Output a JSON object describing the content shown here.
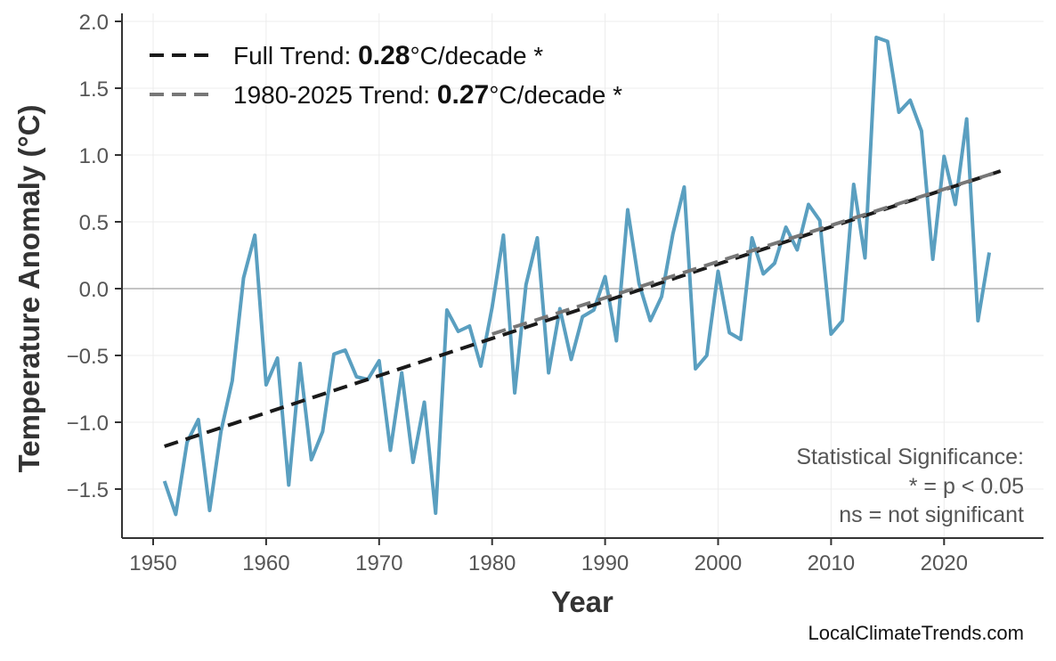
{
  "chart_data": {
    "type": "line",
    "xlabel": "Year",
    "ylabel": "Temperature Anomaly (°C)",
    "xlim": [
      1947,
      2029
    ],
    "ylim": [
      -1.85,
      2.05
    ],
    "x_ticks": [
      "1950",
      "1960",
      "1970",
      "1980",
      "1990",
      "2000",
      "2010",
      "2020"
    ],
    "y_ticks": [
      "−1.5",
      "−1.0",
      "−0.5",
      "0.0",
      "0.5",
      "1.0",
      "1.5",
      "2.0"
    ],
    "grid": true,
    "legend_position": "top-left",
    "colors": {
      "series": "#5a9fc0",
      "full_trend": "#1a1a1a",
      "recent_trend": "#777777",
      "zero_line": "#b0b0b0"
    },
    "x": [
      1951,
      1952,
      1953,
      1954,
      1955,
      1956,
      1957,
      1958,
      1959,
      1960,
      1961,
      1962,
      1963,
      1964,
      1965,
      1966,
      1967,
      1968,
      1969,
      1970,
      1971,
      1972,
      1973,
      1974,
      1975,
      1976,
      1977,
      1978,
      1979,
      1980,
      1981,
      1982,
      1983,
      1984,
      1985,
      1986,
      1987,
      1988,
      1989,
      1990,
      1991,
      1992,
      1993,
      1994,
      1995,
      1996,
      1997,
      1998,
      1999,
      2000,
      2001,
      2002,
      2003,
      2004,
      2005,
      2006,
      2007,
      2008,
      2009,
      2010,
      2011,
      2012,
      2013,
      2014,
      2015,
      2016,
      2017,
      2018,
      2019,
      2020,
      2021,
      2022,
      2023,
      2024
    ],
    "values": [
      -1.44,
      -1.69,
      -1.15,
      -0.98,
      -1.66,
      -1.07,
      -0.69,
      0.08,
      0.4,
      -0.72,
      -0.52,
      -1.47,
      -0.56,
      -1.28,
      -1.07,
      -0.49,
      -0.46,
      -0.66,
      -0.68,
      -0.54,
      -1.21,
      -0.63,
      -1.3,
      -0.85,
      -1.68,
      -0.16,
      -0.32,
      -0.28,
      -0.58,
      -0.14,
      0.4,
      -0.78,
      0.03,
      0.38,
      -0.63,
      -0.15,
      -0.53,
      -0.21,
      -0.16,
      0.09,
      -0.39,
      0.59,
      0.04,
      -0.24,
      -0.06,
      0.41,
      0.76,
      -0.6,
      -0.5,
      0.13,
      -0.33,
      -0.38,
      0.38,
      0.11,
      0.19,
      0.46,
      0.29,
      0.63,
      0.51,
      -0.34,
      -0.24,
      0.78,
      0.23,
      1.88,
      1.85,
      1.32,
      1.41,
      1.18,
      0.22,
      0.99,
      0.63,
      1.27,
      -0.24,
      0.27
    ],
    "trends": [
      {
        "name_prefix": "Full Trend: ",
        "rate": "0.28",
        "name_suffix": "°C/decade *",
        "x": [
          1951,
          2025
        ],
        "y": [
          -1.18,
          0.88
        ]
      },
      {
        "name_prefix": "1980-2025 Trend: ",
        "rate": "0.27",
        "name_suffix": "°C/decade *",
        "x": [
          1980,
          2025
        ],
        "y": [
          -0.34,
          0.88
        ]
      }
    ],
    "annotation": [
      "Statistical Significance:",
      "* = p < 0.05",
      "ns = not significant"
    ],
    "credit": "LocalClimateTrends.com"
  }
}
